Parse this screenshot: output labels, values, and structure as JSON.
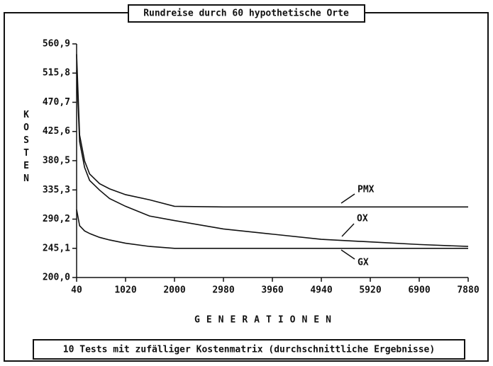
{
  "chart_data": {
    "type": "line",
    "title": "Rundreise durch 60 hypothetische Orte",
    "subtitle": "10 Tests mit zufälliger Kostenmatrix (durchschnittliche Ergebnisse)",
    "x_label": "GENERATIONEN",
    "y_label": "KOSTEN",
    "x": [
      40,
      100,
      200,
      300,
      500,
      700,
      1020,
      1500,
      2000,
      2980,
      3960,
      4940,
      5920,
      6900,
      7880
    ],
    "series": [
      {
        "name": "PMX",
        "color": "#111111",
        "values": [
          545,
          420,
          380,
          360,
          345,
          337,
          328,
          320,
          310,
          309,
          309,
          309,
          309,
          309,
          309
        ]
      },
      {
        "name": "OX",
        "color": "#111111",
        "values": [
          520,
          410,
          370,
          350,
          335,
          322,
          310,
          295,
          288,
          275,
          267,
          259,
          255,
          251,
          248
        ]
      },
      {
        "name": "GX",
        "color": "#111111",
        "values": [
          305,
          280,
          272,
          268,
          262,
          258,
          253,
          248,
          245,
          245,
          245,
          245,
          245,
          245,
          245
        ]
      }
    ],
    "xlim": [
      40,
      7880
    ],
    "xticks": [
      40,
      1020,
      2000,
      2980,
      3960,
      4940,
      5920,
      6900,
      7880
    ],
    "ylim": [
      200,
      560.9
    ],
    "yticks": [
      {
        "value": 200.0,
        "label": "200,0"
      },
      {
        "value": 245.1,
        "label": "245,1"
      },
      {
        "value": 290.2,
        "label": "290,2"
      },
      {
        "value": 335.3,
        "label": "335,3"
      },
      {
        "value": 380.5,
        "label": "380,5"
      },
      {
        "value": 425.6,
        "label": "425,6"
      },
      {
        "value": 470.7,
        "label": "470,7"
      },
      {
        "value": 515.8,
        "label": "515,8"
      },
      {
        "value": 560.9,
        "label": "560,9"
      }
    ],
    "grid": false
  }
}
